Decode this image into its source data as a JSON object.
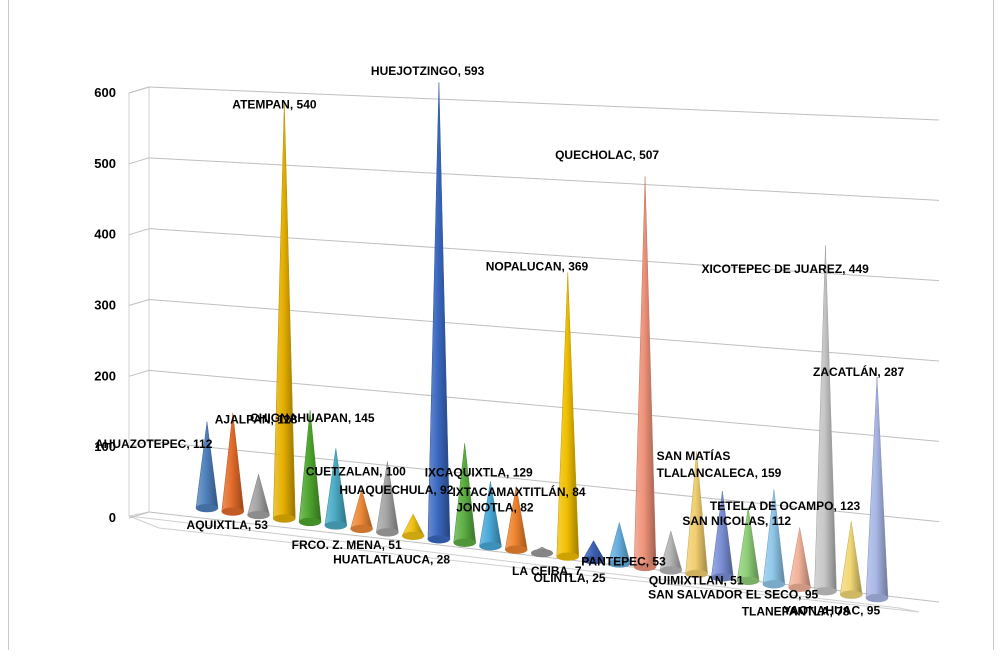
{
  "chart_data": {
    "type": "bar",
    "subtype": "3d-cone",
    "title": "",
    "xlabel": "",
    "ylabel": "",
    "ylim": [
      0,
      600
    ],
    "yticks": [
      0,
      100,
      200,
      300,
      400,
      500,
      600
    ],
    "grid": true,
    "legend": "none",
    "categories": [
      "AHUAZOTEPEC",
      "AJALPAN",
      "AQUIXTLA",
      "ATEMPAN",
      "CHIGNAHUAPAN",
      "CUETZALAN",
      "FRCO. Z. MENA",
      "HUAQUECHULA",
      "HUATLATLAUCA",
      "HUEJOTZINGO",
      "IXCAQUIXTLA",
      "IXTACAMAXTITLÁN",
      "JONOTLA",
      "LA CEIBA",
      "NOPALUCAN",
      "OLINTLA",
      "PANTEPEC",
      "QUECHOLAC",
      "QUIMIXTLAN",
      "SAN MATÍAS TLALANCALECA",
      "SAN NICOLAS",
      "SAN SALVADOR EL SECO",
      "TETELA DE OCAMPO",
      "TLANEPANTLA",
      "XICOTEPEC DE JUAREZ",
      "YAONAHUAC",
      "ZACATLÁN"
    ],
    "values": [
      112,
      128,
      53,
      540,
      145,
      100,
      51,
      92,
      28,
      593,
      129,
      84,
      82,
      7,
      369,
      25,
      53,
      507,
      51,
      159,
      112,
      95,
      123,
      78,
      449,
      95,
      287
    ],
    "data_labels": [
      "AHUAZOTEPEC, 112",
      "AJALPAN, 128",
      "AQUIXTLA, 53",
      "ATEMPAN, 540",
      "CHIGNAHUAPAN, 145",
      "CUETZALAN, 100",
      "FRCO. Z. MENA, 51",
      "HUAQUECHULA, 92",
      "HUATLATLAUCA, 28",
      "HUEJOTZINGO, 593",
      "IXCAQUIXTLA, 129",
      "IXTACAMAXTITLÁN, 84",
      "JONOTLA, 82",
      "LA CEIBA, 7",
      "NOPALUCAN, 369",
      "OLINTLA, 25",
      "PANTEPEC, 53",
      "QUECHOLAC, 507",
      "QUIMIXTLAN, 51",
      "SAN MATÍAS\nTLALANCALECA, 159",
      "SAN NICOLAS, 112",
      "SAN SALVADOR EL SECO, 95",
      "TETELA DE OCAMPO, 123",
      "TLANEPANTLA, 78",
      "XICOTEPEC DE JUAREZ, 449",
      "YAONAHUAC, 95",
      "ZACATLÁN, 287"
    ],
    "colors": [
      "#4f81bd",
      "#e46c2a",
      "#a5a5a5",
      "#e6b000",
      "#4ea72e",
      "#4bacc6",
      "#ef8a3a",
      "#a5a5a5",
      "#f2c314",
      "#3a68c0",
      "#5cb043",
      "#49a9d8",
      "#f0842f",
      "#9c9c9c",
      "#f2c000",
      "#3f64b8",
      "#66aee0",
      "#f0937a",
      "#b8b8b8",
      "#f2cf6e",
      "#7a8fd6",
      "#8fcf78",
      "#8fc8ea",
      "#f3b39b",
      "#c7c7c7",
      "#f2d875",
      "#a9b7e6"
    ]
  }
}
